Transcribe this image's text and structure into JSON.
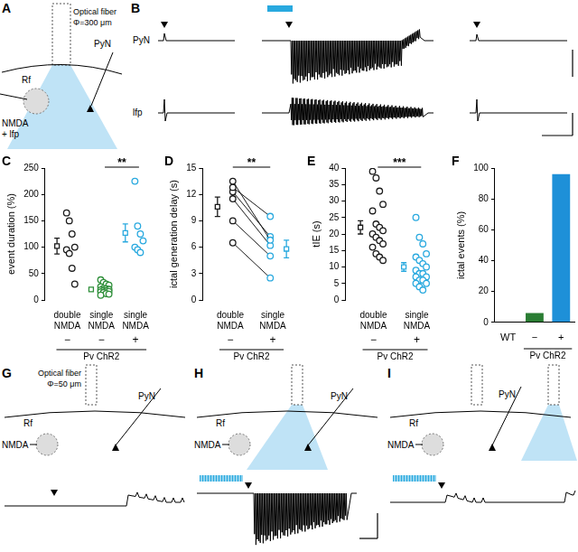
{
  "diagrams": {
    "A": {
      "fiber": "Optical fiber",
      "diameter": "Φ=300 μm",
      "rf": "Rf",
      "pyn": "PyN",
      "nmda": [
        "NMDA",
        "+ lfp"
      ]
    },
    "B": {
      "traces": [
        "PyN",
        "lfp"
      ]
    },
    "G": {
      "fiber": "Optical fiber",
      "diameter": "Φ=50 μm",
      "rf": "Rf",
      "pyn": "PyN",
      "nmda": [
        "NMDA"
      ]
    },
    "H": {
      "rf": "Rf",
      "pyn": "PyN",
      "nmda": [
        "NMDA"
      ]
    },
    "I": {
      "rf": "Rf",
      "pyn": "PyN",
      "nmda": [
        "NMDA"
      ]
    }
  },
  "chart_data": [
    {
      "panel": "C",
      "type": "scatter",
      "y_label": "event duration (%)",
      "ylim": [
        0,
        250
      ],
      "yticks": [
        0,
        50,
        100,
        150,
        200,
        250
      ],
      "grid": false,
      "categories": [
        "double NMDA",
        "single NMDA",
        "single NMDA"
      ],
      "signs": [
        "−",
        "−",
        "+"
      ],
      "group_label": "Pv ChR2",
      "group_members": [
        true,
        true,
        true
      ],
      "colors": [
        "#1a1a1a",
        "#2f8f3a",
        "#29a9df"
      ],
      "values": [
        [
          165,
          150,
          125,
          100,
          95,
          88,
          60,
          30
        ],
        [
          38,
          33,
          30,
          28,
          25,
          22,
          21,
          20,
          19,
          18,
          17,
          16,
          15,
          14,
          12,
          11,
          9
        ],
        [
          225,
          140,
          125,
          112,
          100,
          95,
          90
        ]
      ],
      "mean": [
        102,
        20,
        127
      ],
      "sem": [
        15,
        2,
        17
      ],
      "significance": [
        {
          "between": [
            1,
            2
          ],
          "label": "**"
        }
      ]
    },
    {
      "panel": "D",
      "type": "paired",
      "y_label": "ictal generation delay (s)",
      "ylim": [
        0,
        15
      ],
      "yticks": [
        0,
        3,
        6,
        9,
        12,
        15
      ],
      "grid": false,
      "categories": [
        "double NMDA",
        "single NMDA"
      ],
      "signs": [
        "−",
        "+"
      ],
      "group_label": "Pv ChR2",
      "group_members": [
        true,
        true
      ],
      "colors": [
        "#1a1a1a",
        "#29a9df"
      ],
      "pairs": [
        [
          13.5,
          6.8
        ],
        [
          12.8,
          9.5
        ],
        [
          12.3,
          7.2
        ],
        [
          11.5,
          6.2
        ],
        [
          9.0,
          5.0
        ],
        [
          6.5,
          2.5
        ]
      ],
      "mean": [
        10.6,
        5.8
      ],
      "sem": [
        1.1,
        1.0
      ],
      "significance": [
        {
          "between": [
            0,
            1
          ],
          "label": "**"
        }
      ]
    },
    {
      "panel": "E",
      "type": "scatter",
      "y_label": "tIE (s)",
      "ylim": [
        0,
        40
      ],
      "yticks": [
        0,
        5,
        10,
        15,
        20,
        25,
        30,
        35,
        40
      ],
      "grid": false,
      "categories": [
        "double NMDA",
        "single NMDA"
      ],
      "signs": [
        "−",
        "+"
      ],
      "group_label": "Pv ChR2",
      "group_members": [
        true,
        true
      ],
      "colors": [
        "#1a1a1a",
        "#29a9df"
      ],
      "values": [
        [
          39,
          37,
          33,
          29,
          27,
          23,
          22,
          21,
          20,
          19,
          18,
          17,
          16,
          14,
          13,
          12
        ],
        [
          25,
          19,
          17,
          14,
          13,
          12,
          11,
          10,
          9,
          8,
          8,
          7,
          7,
          6,
          6,
          5,
          5,
          4,
          3
        ]
      ],
      "mean": [
        22,
        10
      ],
      "sem": [
        2,
        1.3
      ],
      "significance": [
        {
          "between": [
            0,
            1
          ],
          "label": "***"
        }
      ]
    },
    {
      "panel": "F",
      "type": "bar",
      "y_label": "ictal events (%)",
      "ylim": [
        0,
        100
      ],
      "yticks": [
        0,
        20,
        40,
        60,
        80,
        100
      ],
      "grid": false,
      "categories": [
        "WT",
        "−",
        "+"
      ],
      "group_label": "Pv ChR2",
      "group_members": [
        false,
        true,
        true
      ],
      "colors": [
        "#1a1a1a",
        "#2a7d33",
        "#1e90d8"
      ],
      "values": [
        0,
        6,
        96
      ]
    }
  ]
}
